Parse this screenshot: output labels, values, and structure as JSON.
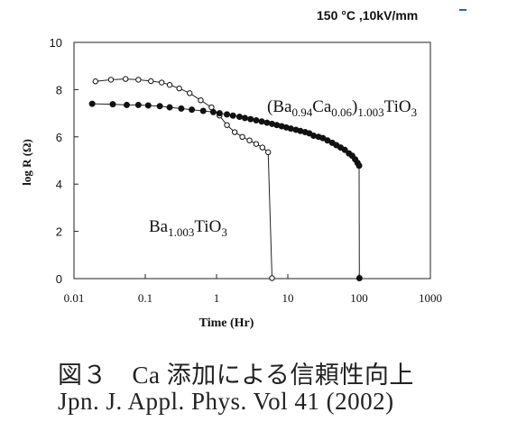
{
  "chart_data": {
    "type": "scatter",
    "annotation": "150 °C ,10kV/mm",
    "xlabel": "Time   (Hr)",
    "ylabel": "log R   (Ω)",
    "xscale": "log",
    "xlim": [
      0.01,
      1000
    ],
    "ylim": [
      0,
      10
    ],
    "xticks": [
      "0.01",
      "0.1",
      "1",
      "10",
      "100",
      "1000"
    ],
    "yticks": [
      "0",
      "2",
      "4",
      "6",
      "8",
      "10"
    ],
    "grid": false,
    "series": [
      {
        "name": "Ba1.003TiO3",
        "label_parts": [
          {
            "text": "Ba",
            "sub": false
          },
          {
            "text": "1.003",
            "sub": true
          },
          {
            "text": "TiO",
            "sub": false
          },
          {
            "text": "3",
            "sub": true
          }
        ],
        "marker": "open-circle",
        "x": [
          0.02,
          0.033,
          0.053,
          0.08,
          0.12,
          0.17,
          0.22,
          0.3,
          0.42,
          0.6,
          0.85,
          1.1,
          1.4,
          1.8,
          2.3,
          2.9,
          3.6,
          4.4,
          5.3,
          6.0
        ],
        "y": [
          8.35,
          8.42,
          8.45,
          8.42,
          8.36,
          8.3,
          8.2,
          8.05,
          7.85,
          7.55,
          7.25,
          6.9,
          6.5,
          6.2,
          6.0,
          5.85,
          5.7,
          5.55,
          5.35,
          0.02
        ]
      },
      {
        "name": "(Ba0.94Ca0.06)1.003TiO3",
        "label_parts": [
          {
            "text": "(Ba",
            "sub": false
          },
          {
            "text": "0.94",
            "sub": true
          },
          {
            "text": "Ca",
            "sub": false
          },
          {
            "text": "0.06",
            "sub": true
          },
          {
            "text": ")",
            "sub": false
          },
          {
            "text": "1.003",
            "sub": true
          },
          {
            "text": "TiO",
            "sub": false
          },
          {
            "text": "3",
            "sub": true
          }
        ],
        "marker": "filled-circle",
        "x": [
          0.018,
          0.035,
          0.055,
          0.08,
          0.11,
          0.16,
          0.22,
          0.32,
          0.45,
          0.65,
          0.9,
          1.1,
          1.4,
          1.7,
          2.1,
          2.5,
          3.0,
          3.6,
          4.3,
          5.1,
          6.0,
          7.0,
          8.2,
          9.5,
          11,
          13,
          15,
          17.5,
          20,
          23,
          27,
          31,
          36,
          42,
          48,
          55,
          63,
          72,
          80,
          88,
          95,
          100,
          101
        ],
        "y": [
          7.4,
          7.38,
          7.35,
          7.35,
          7.33,
          7.3,
          7.25,
          7.2,
          7.15,
          7.1,
          7.05,
          7.0,
          6.95,
          6.9,
          6.85,
          6.8,
          6.75,
          6.7,
          6.65,
          6.6,
          6.55,
          6.5,
          6.45,
          6.4,
          6.35,
          6.3,
          6.25,
          6.2,
          6.15,
          6.05,
          6.0,
          5.95,
          5.85,
          5.75,
          5.65,
          5.55,
          5.45,
          5.3,
          5.2,
          5.05,
          4.9,
          4.78,
          0.02
        ]
      }
    ]
  },
  "caption": {
    "line1": "図３　Ca 添加による信頼性向上",
    "line2": "Jpn. J. Appl. Phys. Vol 41 (2002)"
  }
}
